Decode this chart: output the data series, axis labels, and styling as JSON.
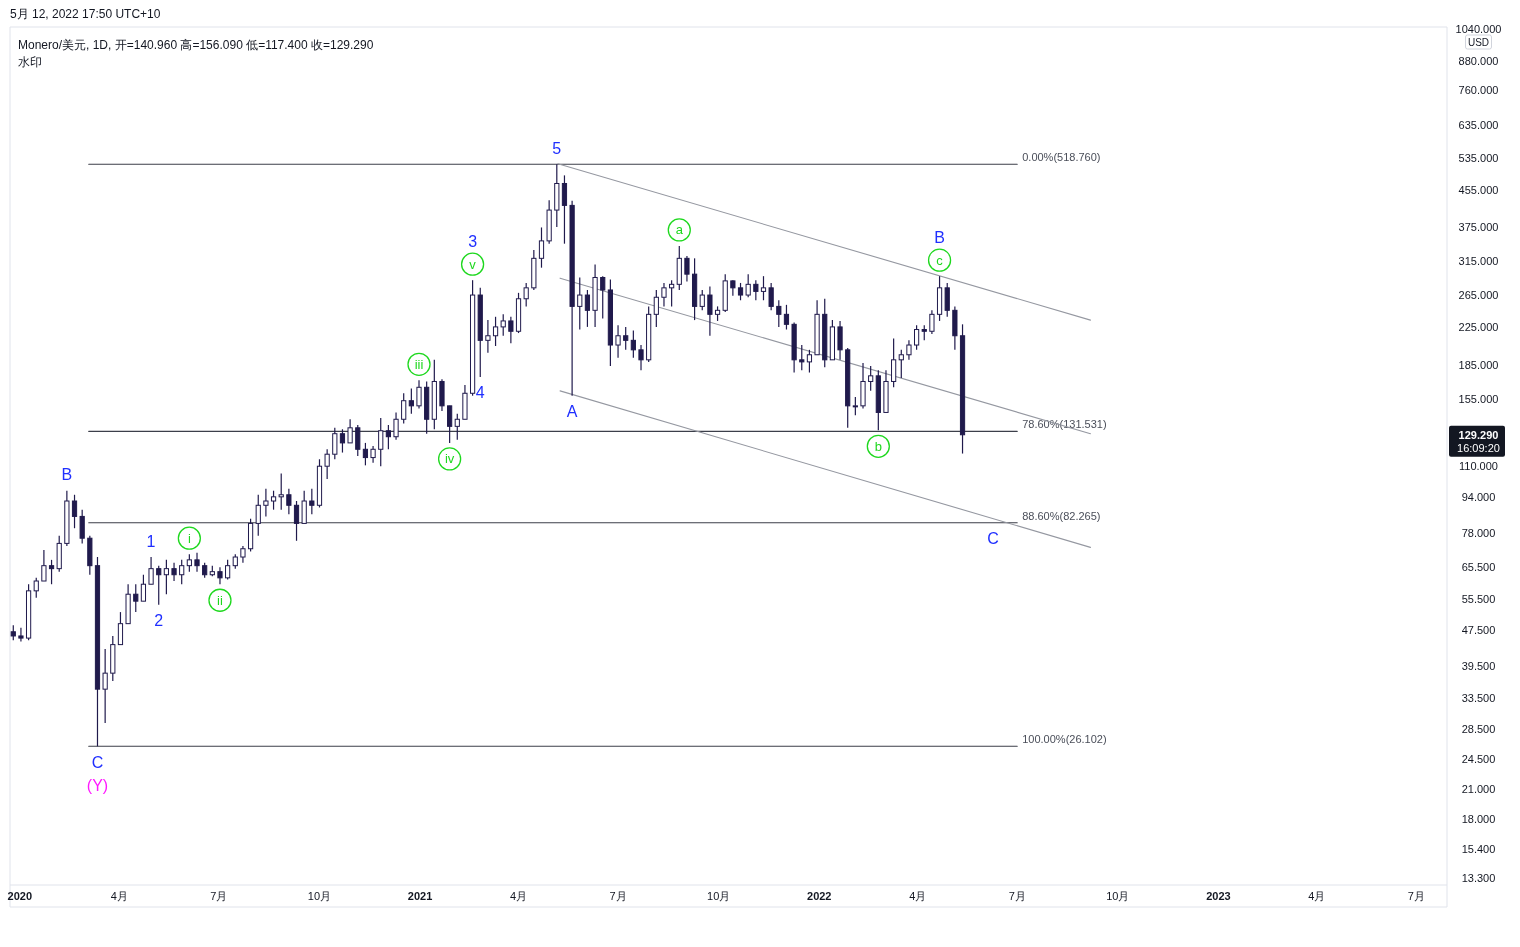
{
  "chart_data": {
    "type": "candlestick",
    "title": "Monero/美元, 1D, 开=140.960 高=156.090 低=117.400 收=129.290",
    "subtitle": "水印",
    "ylabel": "USD",
    "color": "#201a4c",
    "x": [
      "2019-12-26",
      "2020-01-02",
      "2020-01-09",
      "2020-01-16",
      "2020-01-23",
      "2020-01-30",
      "2020-02-06",
      "2020-02-13",
      "2020-02-20",
      "2020-02-27",
      "2020-03-05",
      "2020-03-12",
      "2020-03-19",
      "2020-03-26",
      "2020-04-02",
      "2020-04-09",
      "2020-04-16",
      "2020-04-23",
      "2020-04-30",
      "2020-05-07",
      "2020-05-14",
      "2020-05-21",
      "2020-05-28",
      "2020-06-04",
      "2020-06-11",
      "2020-06-18",
      "2020-06-25",
      "2020-07-02",
      "2020-07-09",
      "2020-07-16",
      "2020-07-23",
      "2020-07-30",
      "2020-08-06",
      "2020-08-13",
      "2020-08-20",
      "2020-08-27",
      "2020-09-03",
      "2020-09-10",
      "2020-09-17",
      "2020-09-24",
      "2020-10-01",
      "2020-10-08",
      "2020-10-15",
      "2020-10-22",
      "2020-10-29",
      "2020-11-05",
      "2020-11-12",
      "2020-11-19",
      "2020-11-26",
      "2020-12-03",
      "2020-12-10",
      "2020-12-17",
      "2020-12-24",
      "2020-12-31",
      "2021-01-07",
      "2021-01-14",
      "2021-01-21",
      "2021-01-28",
      "2021-02-04",
      "2021-02-11",
      "2021-02-18",
      "2021-02-25",
      "2021-03-04",
      "2021-03-11",
      "2021-03-18",
      "2021-03-25",
      "2021-04-01",
      "2021-04-08",
      "2021-04-15",
      "2021-04-22",
      "2021-04-29",
      "2021-05-06",
      "2021-05-13",
      "2021-05-20",
      "2021-05-27",
      "2021-06-03",
      "2021-06-10",
      "2021-06-17",
      "2021-06-24",
      "2021-07-01",
      "2021-07-08",
      "2021-07-15",
      "2021-07-22",
      "2021-07-29",
      "2021-08-05",
      "2021-08-12",
      "2021-08-19",
      "2021-08-26",
      "2021-09-02",
      "2021-09-09",
      "2021-09-16",
      "2021-09-23",
      "2021-09-30",
      "2021-10-07",
      "2021-10-14",
      "2021-10-21",
      "2021-10-28",
      "2021-11-04",
      "2021-11-11",
      "2021-11-18",
      "2021-11-25",
      "2021-12-02",
      "2021-12-09",
      "2021-12-16",
      "2021-12-23",
      "2021-12-30",
      "2022-01-06",
      "2022-01-13",
      "2022-01-20",
      "2022-01-27",
      "2022-02-03",
      "2022-02-10",
      "2022-02-17",
      "2022-02-24",
      "2022-03-03",
      "2022-03-10",
      "2022-03-17",
      "2022-03-24",
      "2022-03-31",
      "2022-04-07",
      "2022-04-14",
      "2022-04-21",
      "2022-04-28",
      "2022-05-05",
      "2022-05-12"
    ],
    "ohlc": [
      [
        47,
        48.6,
        45,
        46
      ],
      [
        46,
        48,
        44.7,
        45.5
      ],
      [
        45.5,
        60,
        45,
        58
      ],
      [
        58,
        62,
        56,
        61
      ],
      [
        61,
        71.5,
        61,
        66
      ],
      [
        66,
        68,
        60,
        65
      ],
      [
        65,
        77,
        64,
        74
      ],
      [
        74,
        97,
        73,
        92
      ],
      [
        92,
        95,
        80,
        85
      ],
      [
        85,
        88,
        74,
        76
      ],
      [
        76,
        77,
        63,
        66
      ],
      [
        66,
        69,
        26.1,
        35
      ],
      [
        35,
        43,
        29.4,
        38
      ],
      [
        38,
        46,
        36.5,
        44
      ],
      [
        44,
        52,
        44,
        49
      ],
      [
        49,
        60,
        49,
        57
      ],
      [
        57,
        60,
        52,
        55
      ],
      [
        55,
        63,
        55,
        60
      ],
      [
        60,
        69,
        60,
        65
      ],
      [
        65,
        66,
        54,
        63
      ],
      [
        63,
        68,
        57,
        65
      ],
      [
        65,
        67,
        61,
        63
      ],
      [
        63,
        68,
        60,
        66
      ],
      [
        66,
        70,
        64,
        68
      ],
      [
        68,
        70.5,
        64,
        66
      ],
      [
        66,
        67,
        62,
        63
      ],
      [
        63,
        66,
        62.5,
        64
      ],
      [
        64,
        65.5,
        60,
        62
      ],
      [
        62,
        68,
        61.5,
        66
      ],
      [
        66,
        70,
        65,
        69
      ],
      [
        69,
        73,
        67,
        72
      ],
      [
        72,
        84,
        71,
        82
      ],
      [
        82,
        95,
        77,
        90
      ],
      [
        90,
        98,
        85,
        92
      ],
      [
        92,
        97,
        88,
        94
      ],
      [
        94,
        106,
        88,
        95
      ],
      [
        95,
        98,
        86,
        90
      ],
      [
        90,
        92,
        75,
        82
      ],
      [
        82,
        97,
        82,
        92
      ],
      [
        92,
        98,
        86,
        90
      ],
      [
        90,
        114,
        89,
        110
      ],
      [
        110,
        120,
        103,
        117
      ],
      [
        117,
        134,
        114,
        130
      ],
      [
        130,
        133,
        118,
        124
      ],
      [
        124,
        140,
        124,
        134
      ],
      [
        134,
        136,
        116,
        120
      ],
      [
        120,
        124,
        110.5,
        115
      ],
      [
        115,
        122,
        112,
        120
      ],
      [
        120,
        141,
        110,
        132
      ],
      [
        132,
        136,
        120,
        128
      ],
      [
        128,
        145,
        126,
        140
      ],
      [
        140,
        160,
        137,
        154
      ],
      [
        154,
        164,
        144,
        150
      ],
      [
        150,
        171,
        148,
        165
      ],
      [
        165,
        170,
        130,
        140
      ],
      [
        140,
        190,
        133,
        170
      ],
      [
        170,
        172,
        146,
        150
      ],
      [
        150,
        150,
        124,
        135
      ],
      [
        135,
        144,
        126,
        140
      ],
      [
        140,
        167,
        140,
        160
      ],
      [
        160,
        286,
        158,
        265
      ],
      [
        265,
        275,
        174,
        210
      ],
      [
        210,
        233,
        197,
        215
      ],
      [
        215,
        237,
        204,
        225
      ],
      [
        225,
        240,
        215,
        232
      ],
      [
        232,
        237,
        207,
        220
      ],
      [
        220,
        268,
        218,
        260
      ],
      [
        260,
        282,
        250,
        275
      ],
      [
        275,
        334,
        272,
        320
      ],
      [
        320,
        375,
        305,
        350
      ],
      [
        350,
        431,
        345,
        410
      ],
      [
        410,
        518.76,
        376,
        470
      ],
      [
        470,
        490,
        345,
        420
      ],
      [
        420,
        430,
        158,
        250
      ],
      [
        250,
        290,
        222,
        265
      ],
      [
        265,
        272,
        225,
        245
      ],
      [
        245,
        310,
        225,
        290
      ],
      [
        290,
        292,
        235,
        272
      ],
      [
        272,
        287,
        184,
        205
      ],
      [
        205,
        227,
        192,
        215
      ],
      [
        215,
        225,
        200,
        210
      ],
      [
        210,
        221,
        192,
        200
      ],
      [
        200,
        205,
        180,
        190
      ],
      [
        190,
        250,
        188,
        240
      ],
      [
        240,
        272,
        225,
        262
      ],
      [
        262,
        282,
        250,
        275
      ],
      [
        275,
        286,
        250,
        280
      ],
      [
        280,
        341,
        272,
        320
      ],
      [
        320,
        324,
        284,
        295
      ],
      [
        295,
        320,
        233,
        250
      ],
      [
        250,
        272,
        245,
        265
      ],
      [
        265,
        277,
        215,
        240
      ],
      [
        240,
        250,
        232,
        245
      ],
      [
        245,
        295,
        243,
        285
      ],
      [
        285,
        286,
        264,
        275
      ],
      [
        275,
        282,
        258,
        265
      ],
      [
        265,
        295,
        262,
        280
      ],
      [
        280,
        286,
        258,
        270
      ],
      [
        270,
        292,
        258,
        275
      ],
      [
        275,
        282,
        245,
        250
      ],
      [
        250,
        258,
        225,
        240
      ],
      [
        240,
        252,
        222,
        228
      ],
      [
        228,
        230,
        178,
        190
      ],
      [
        190,
        205,
        180,
        188
      ],
      [
        188,
        200,
        178,
        195
      ],
      [
        195,
        258,
        195,
        240
      ],
      [
        240,
        260,
        183,
        190
      ],
      [
        190,
        233,
        190,
        225
      ],
      [
        225,
        232,
        190,
        200
      ],
      [
        200,
        202,
        134,
        150
      ],
      [
        150,
        157,
        143,
        150
      ],
      [
        150,
        187,
        148,
        170
      ],
      [
        170,
        184,
        162,
        175
      ],
      [
        175,
        180,
        132.3,
        145
      ],
      [
        145,
        180,
        145,
        170
      ],
      [
        170,
        212,
        165,
        190
      ],
      [
        190,
        200,
        173,
        195
      ],
      [
        195,
        210,
        190,
        205
      ],
      [
        205,
        227,
        200,
        222
      ],
      [
        222,
        227,
        210,
        220
      ],
      [
        220,
        245,
        217,
        240
      ],
      [
        240,
        292,
        232,
        275
      ],
      [
        275,
        282,
        237,
        245
      ],
      [
        245,
        250,
        200,
        215
      ],
      [
        215,
        228,
        117.4,
        129.29
      ]
    ],
    "series": [
      {
        "type": "line",
        "name": "0.00%(518.760)",
        "color": "#3c3f4a",
        "x": [
          "2020-03-04",
          "2022-07-01"
        ],
        "values": [
          518.76,
          518.76
        ]
      },
      {
        "type": "line",
        "name": "78.60%(131.531)",
        "color": "#3c3f4a",
        "x": [
          "2020-03-04",
          "2022-07-01"
        ],
        "values": [
          131.531,
          131.531
        ]
      },
      {
        "type": "line",
        "name": "88.60%(82.265)",
        "color": "#3c3f4a",
        "x": [
          "2020-03-04",
          "2022-07-01"
        ],
        "values": [
          82.265,
          82.265
        ]
      },
      {
        "type": "line",
        "name": "100.00%(26.102)",
        "color": "#3c3f4a",
        "x": [
          "2020-03-04",
          "2022-07-01"
        ],
        "values": [
          26.102,
          26.102
        ]
      },
      {
        "type": "line",
        "color": "#9598a1",
        "x": [
          "2021-05-07",
          "2022-09-06"
        ],
        "values": [
          520,
          233
        ]
      },
      {
        "type": "line",
        "color": "#9598a1",
        "x": [
          "2021-05-09",
          "2022-09-06"
        ],
        "values": [
          289,
          130
        ]
      },
      {
        "type": "line",
        "color": "#9598a1",
        "x": [
          "2021-05-09",
          "2022-09-06"
        ],
        "values": [
          162,
          72.5
        ]
      }
    ],
    "annotations": [
      "5月 12, 2022 17:50 UTC+10",
      {
        "text": "B",
        "x": "2020-02-13",
        "y": 97
      },
      {
        "text": "C",
        "x": "2020-03-12",
        "y": 26.1
      },
      {
        "text": "1",
        "x": "2020-04-30",
        "y": 69
      },
      {
        "text": "2",
        "x": "2020-05-07",
        "y": 54
      },
      {
        "text": "3",
        "x": "2021-02-18",
        "y": 286
      },
      {
        "text": "4",
        "x": "2021-02-25",
        "y": 174
      },
      {
        "text": "5",
        "x": "2021-05-06",
        "y": 518.76
      },
      {
        "text": "A",
        "x": "2021-05-20",
        "y": 158
      },
      {
        "text": "B",
        "x": "2022-04-21",
        "y": 292
      },
      {
        "text": "C",
        "x": "2022-06-09",
        "y": 82.265
      },
      {
        "text": "i",
        "x": "2020-06-04",
        "y": 70
      },
      {
        "text": "ii",
        "x": "2020-07-02",
        "y": 60
      },
      {
        "text": "iii",
        "x": "2020-12-31",
        "y": 171
      },
      {
        "text": "iv",
        "x": "2021-01-28",
        "y": 124
      },
      {
        "text": "v",
        "x": "2021-02-18",
        "y": 286
      },
      {
        "text": "a",
        "x": "2021-08-26",
        "y": 341
      },
      {
        "text": "b",
        "x": "2022-02-24",
        "y": 132.3
      },
      {
        "text": "c",
        "x": "2022-04-21",
        "y": 292
      },
      {
        "text": "(Y)",
        "x": "2020-03-12",
        "y": 26.1
      },
      "129.290",
      "16:09:20"
    ],
    "xlim": [
      "2019-12-23",
      "2023-07-29"
    ],
    "ylim": [
      12.8,
      1050
    ],
    "xticks": [
      {
        "value": "2020-01-01",
        "label": "2020"
      },
      {
        "value": "2020-04-01",
        "label": "4月"
      },
      {
        "value": "2020-07-01",
        "label": "7月"
      },
      {
        "value": "2020-10-01",
        "label": "10月"
      },
      {
        "value": "2021-01-01",
        "label": "2021"
      },
      {
        "value": "2021-04-01",
        "label": "4月"
      },
      {
        "value": "2021-07-01",
        "label": "7月"
      },
      {
        "value": "2021-10-01",
        "label": "10月"
      },
      {
        "value": "2022-01-01",
        "label": "2022"
      },
      {
        "value": "2022-04-01",
        "label": "4月"
      },
      {
        "value": "2022-07-01",
        "label": "7月"
      },
      {
        "value": "2022-10-01",
        "label": "10月"
      },
      {
        "value": "2023-01-01",
        "label": "2023"
      },
      {
        "value": "2023-04-01",
        "label": "4月"
      },
      {
        "value": "2023-07-01",
        "label": "7月"
      }
    ],
    "yticks": [
      {
        "value": 1040,
        "label": "1040.000"
      },
      {
        "value": 880,
        "label": "880.000"
      },
      {
        "value": 760,
        "label": "760.000"
      },
      {
        "value": 635,
        "label": "635.000"
      },
      {
        "value": 535,
        "label": "535.000"
      },
      {
        "value": 455,
        "label": "455.000"
      },
      {
        "value": 375,
        "label": "375.000"
      },
      {
        "value": 315,
        "label": "315.000"
      },
      {
        "value": 265,
        "label": "265.000"
      },
      {
        "value": 225,
        "label": "225.000"
      },
      {
        "value": 185,
        "label": "185.000"
      },
      {
        "value": 155,
        "label": "155.000"
      },
      {
        "value": 110,
        "label": "110.000"
      },
      {
        "value": 94,
        "label": "94.000"
      },
      {
        "value": 78,
        "label": "78.000"
      },
      {
        "value": 65.5,
        "label": "65.500"
      },
      {
        "value": 55.5,
        "label": "55.500"
      },
      {
        "value": 47.5,
        "label": "47.500"
      },
      {
        "value": 39.5,
        "label": "39.500"
      },
      {
        "value": 33.5,
        "label": "33.500"
      },
      {
        "value": 28.5,
        "label": "28.500"
      },
      {
        "value": 24.5,
        "label": "24.500"
      },
      {
        "value": 21,
        "label": "21.000"
      },
      {
        "value": 18,
        "label": "18.000"
      },
      {
        "value": 15.4,
        "label": "15.400"
      },
      {
        "value": 13.3,
        "label": "13.300"
      }
    ],
    "log": true
  }
}
